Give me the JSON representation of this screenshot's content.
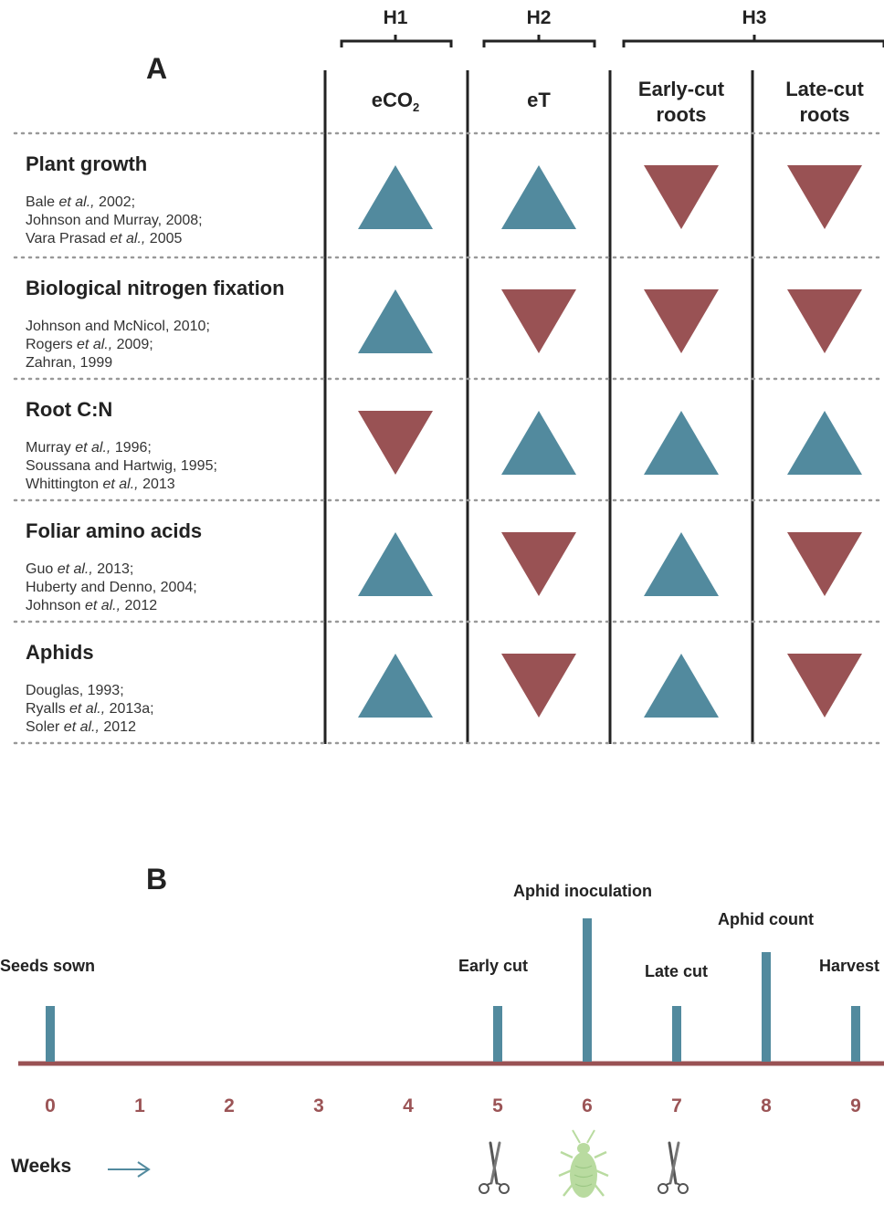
{
  "panel_a": {
    "label": "A",
    "hypotheses": [
      {
        "id": "h1",
        "label": "H1"
      },
      {
        "id": "h2",
        "label": "H2"
      },
      {
        "id": "h3",
        "label": "H3"
      }
    ],
    "columns": [
      {
        "id": "eco2",
        "label_main": "eCO",
        "label_sub": "2",
        "line1": "",
        "line2": ""
      },
      {
        "id": "et",
        "label_main": "eT",
        "label_sub": "",
        "line1": "",
        "line2": ""
      },
      {
        "id": "early",
        "label_main": "",
        "label_sub": "",
        "line1": "Early-cut",
        "line2": "roots"
      },
      {
        "id": "late",
        "label_main": "",
        "label_sub": "",
        "line1": "Late-cut",
        "line2": "roots"
      }
    ],
    "rows": [
      {
        "title": "Plant growth",
        "refs": [
          [
            "Bale ",
            "et al.,",
            " 2002;"
          ],
          [
            "Johnson and Murray, 2008;",
            "",
            ""
          ],
          [
            "Vara Prasad ",
            "et al.,",
            " 2005"
          ]
        ],
        "effects": [
          "up",
          "up",
          "down",
          "down"
        ]
      },
      {
        "title": "Biological nitrogen fixation",
        "refs": [
          [
            "Johnson and McNicol, 2010;",
            "",
            ""
          ],
          [
            "Rogers ",
            "et al.,",
            " 2009;"
          ],
          [
            "Zahran, 1999",
            "",
            ""
          ]
        ],
        "effects": [
          "up",
          "down",
          "down",
          "down"
        ]
      },
      {
        "title": "Root C:N",
        "refs": [
          [
            "Murray ",
            "et al.,",
            " 1996;"
          ],
          [
            "Soussana and Hartwig, 1995;",
            "",
            ""
          ],
          [
            "Whittington ",
            "et al.,",
            " 2013"
          ]
        ],
        "effects": [
          "down",
          "up",
          "up",
          "up"
        ]
      },
      {
        "title": "Foliar amino acids",
        "refs": [
          [
            "Guo ",
            "et al.,",
            " 2013;"
          ],
          [
            "Huberty and Denno, 2004;",
            "",
            ""
          ],
          [
            "Johnson ",
            "et al.,",
            " 2012"
          ]
        ],
        "effects": [
          "up",
          "down",
          "up",
          "down"
        ]
      },
      {
        "title": "Aphids",
        "refs": [
          [
            "Douglas, 1993;",
            "",
            ""
          ],
          [
            "Ryalls ",
            "et al.,",
            " 2013a;"
          ],
          [
            "Soler ",
            "et al.,",
            " 2012"
          ]
        ],
        "effects": [
          "up",
          "down",
          "up",
          "down"
        ]
      }
    ]
  },
  "panel_b": {
    "label": "B",
    "axis_label": "Weeks",
    "weeks": [
      "0",
      "1",
      "2",
      "3",
      "4",
      "5",
      "6",
      "7",
      "8",
      "9"
    ],
    "events": [
      {
        "label": "Seeds sown",
        "week": 0,
        "bar_level": "short"
      },
      {
        "label": "Early cut",
        "week": 5,
        "bar_level": "short"
      },
      {
        "label": "Aphid inoculation",
        "week": 6,
        "bar_level": "tall"
      },
      {
        "label": "Late cut",
        "week": 7,
        "bar_level": "short"
      },
      {
        "label": "Aphid count",
        "week": 8,
        "bar_level": "medium"
      },
      {
        "label": "Harvest",
        "week": 9,
        "bar_level": "short"
      }
    ],
    "icons": [
      {
        "name": "scissors-icon",
        "week": 5
      },
      {
        "name": "aphid-icon",
        "week": 6
      },
      {
        "name": "scissors-icon",
        "week": 7
      }
    ]
  },
  "colors": {
    "increase": "#528a9e",
    "decrease": "#995254",
    "timeline_axis": "#995254",
    "week_numbers": "#9b5456",
    "event_bars": "#528a9e",
    "aphid": "#b9dba0",
    "divider": "#999999"
  }
}
